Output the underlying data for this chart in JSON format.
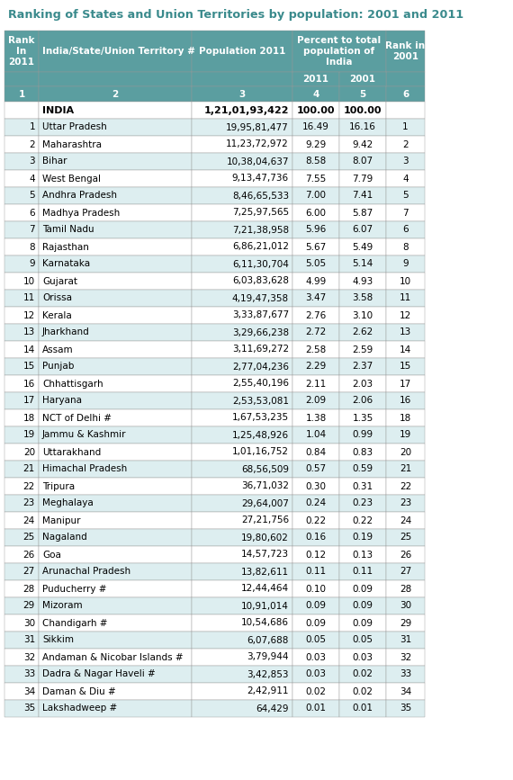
{
  "title": "Ranking of States and Union Territories by population: 2001 and 2011",
  "header_color": "#5b9ea0",
  "odd_row_color": "#ffffff",
  "even_row_color": "#ddeef0",
  "col_numbers": [
    "1",
    "2",
    "3",
    "4",
    "5",
    "6"
  ],
  "india_row": [
    "",
    "INDIA",
    "1,21,01,93,422",
    "100.00",
    "100.00",
    ""
  ],
  "rows": [
    [
      "1",
      "Uttar Pradesh",
      "19,95,81,477",
      "16.49",
      "16.16",
      "1"
    ],
    [
      "2",
      "Maharashtra",
      "11,23,72,972",
      "9.29",
      "9.42",
      "2"
    ],
    [
      "3",
      "Bihar",
      "10,38,04,637",
      "8.58",
      "8.07",
      "3"
    ],
    [
      "4",
      "West Bengal",
      "9,13,47,736",
      "7.55",
      "7.79",
      "4"
    ],
    [
      "5",
      "Andhra Pradesh",
      "8,46,65,533",
      "7.00",
      "7.41",
      "5"
    ],
    [
      "6",
      "Madhya Pradesh",
      "7,25,97,565",
      "6.00",
      "5.87",
      "7"
    ],
    [
      "7",
      "Tamil Nadu",
      "7,21,38,958",
      "5.96",
      "6.07",
      "6"
    ],
    [
      "8",
      "Rajasthan",
      "6,86,21,012",
      "5.67",
      "5.49",
      "8"
    ],
    [
      "9",
      "Karnataka",
      "6,11,30,704",
      "5.05",
      "5.14",
      "9"
    ],
    [
      "10",
      "Gujarat",
      "6,03,83,628",
      "4.99",
      "4.93",
      "10"
    ],
    [
      "11",
      "Orissa",
      "4,19,47,358",
      "3.47",
      "3.58",
      "11"
    ],
    [
      "12",
      "Kerala",
      "3,33,87,677",
      "2.76",
      "3.10",
      "12"
    ],
    [
      "13",
      "Jharkhand",
      "3,29,66,238",
      "2.72",
      "2.62",
      "13"
    ],
    [
      "14",
      "Assam",
      "3,11,69,272",
      "2.58",
      "2.59",
      "14"
    ],
    [
      "15",
      "Punjab",
      "2,77,04,236",
      "2.29",
      "2.37",
      "15"
    ],
    [
      "16",
      "Chhattisgarh",
      "2,55,40,196",
      "2.11",
      "2.03",
      "17"
    ],
    [
      "17",
      "Haryana",
      "2,53,53,081",
      "2.09",
      "2.06",
      "16"
    ],
    [
      "18",
      "NCT of Delhi #",
      "1,67,53,235",
      "1.38",
      "1.35",
      "18"
    ],
    [
      "19",
      "Jammu & Kashmir",
      "1,25,48,926",
      "1.04",
      "0.99",
      "19"
    ],
    [
      "20",
      "Uttarakhand",
      "1,01,16,752",
      "0.84",
      "0.83",
      "20"
    ],
    [
      "21",
      "Himachal Pradesh",
      "68,56,509",
      "0.57",
      "0.59",
      "21"
    ],
    [
      "22",
      "Tripura",
      "36,71,032",
      "0.30",
      "0.31",
      "22"
    ],
    [
      "23",
      "Meghalaya",
      "29,64,007",
      "0.24",
      "0.23",
      "23"
    ],
    [
      "24",
      "Manipur",
      "27,21,756",
      "0.22",
      "0.22",
      "24"
    ],
    [
      "25",
      "Nagaland",
      "19,80,602",
      "0.16",
      "0.19",
      "25"
    ],
    [
      "26",
      "Goa",
      "14,57,723",
      "0.12",
      "0.13",
      "26"
    ],
    [
      "27",
      "Arunachal Pradesh",
      "13,82,611",
      "0.11",
      "0.11",
      "27"
    ],
    [
      "28",
      "Puducherry #",
      "12,44,464",
      "0.10",
      "0.09",
      "28"
    ],
    [
      "29",
      "Mizoram",
      "10,91,014",
      "0.09",
      "0.09",
      "30"
    ],
    [
      "30",
      "Chandigarh #",
      "10,54,686",
      "0.09",
      "0.09",
      "29"
    ],
    [
      "31",
      "Sikkim",
      "6,07,688",
      "0.05",
      "0.05",
      "31"
    ],
    [
      "32",
      "Andaman & Nicobar Islands #",
      "3,79,944",
      "0.03",
      "0.03",
      "32"
    ],
    [
      "33",
      "Dadra & Nagar Haveli #",
      "3,42,853",
      "0.03",
      "0.02",
      "33"
    ],
    [
      "34",
      "Daman & Diu #",
      "2,42,911",
      "0.02",
      "0.02",
      "34"
    ],
    [
      "35",
      "Lakshadweep #",
      "64,429",
      "0.01",
      "0.01",
      "35"
    ]
  ]
}
